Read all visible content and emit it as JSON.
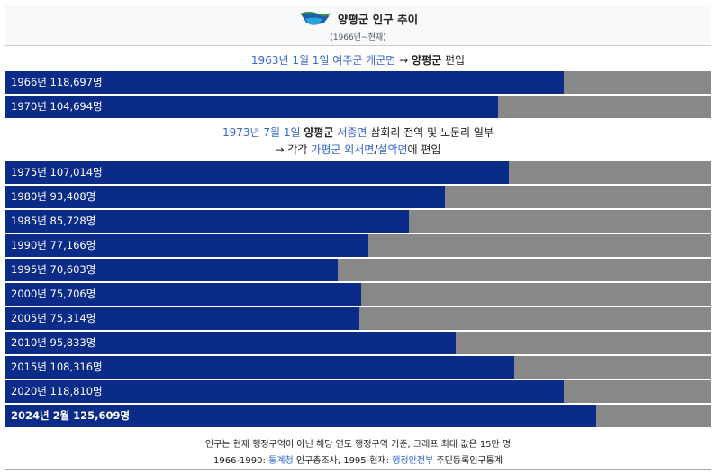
{
  "header": {
    "title": "양평군 인구 추이",
    "subtitle": "(1966년~현재)",
    "logo_icon": "yangpyeong-county-emblem"
  },
  "note1": {
    "part1": "1963년 1월 1일 여주군 개군면",
    "part2": " → ",
    "part3": "양평군",
    "part4": " 편입"
  },
  "note2": {
    "line1_a": "1973년 7월 1일",
    "line1_b": "양평군",
    "line1_c": "서종면",
    "line1_d": "삼회리 전역 및 노문리 일부",
    "line2_a": "→ 각각",
    "line2_b": "가평군 외서면",
    "line2_c": "/",
    "line2_d": "설악면",
    "line2_e": "에 편입"
  },
  "footer": {
    "line1": "인구는 현재 행정구역이 아닌 해당 연도 행정구역 기준, 그래프 최대 값은 15만 명",
    "line2_a": "1966-1990: ",
    "line2_b": "통계청",
    "line2_c": " 인구총조사, 1995-현재: ",
    "line2_d": "행정안전부",
    "line2_e": " 주민등록인구통계"
  },
  "chart_data": {
    "type": "bar",
    "orientation": "horizontal",
    "title": "양평군 인구 추이",
    "subtitle": "(1966년~현재)",
    "xlim": [
      0,
      150000
    ],
    "colors": {
      "bar": "#0b2b88",
      "track": "#888888"
    },
    "categories": [
      "1966년",
      "1970년",
      "1975년",
      "1980년",
      "1985년",
      "1990년",
      "1995년",
      "2000년",
      "2005년",
      "2010년",
      "2015년",
      "2020년",
      "2024년 2월"
    ],
    "values": [
      118697,
      104694,
      107014,
      93408,
      85728,
      77166,
      70603,
      75706,
      75314,
      95833,
      108316,
      118810,
      125609
    ],
    "labels": [
      "1966년 118,697명",
      "1970년 104,694명",
      "1975년 107,014명",
      "1980년 93,408명",
      "1985년 85,728명",
      "1990년 77,166명",
      "1995년 70,603명",
      "2000년 75,706명",
      "2005년 75,314명",
      "2010년 95,833명",
      "2015년 108,316명",
      "2020년 118,810명",
      "2024년 2월 125,609명"
    ]
  }
}
